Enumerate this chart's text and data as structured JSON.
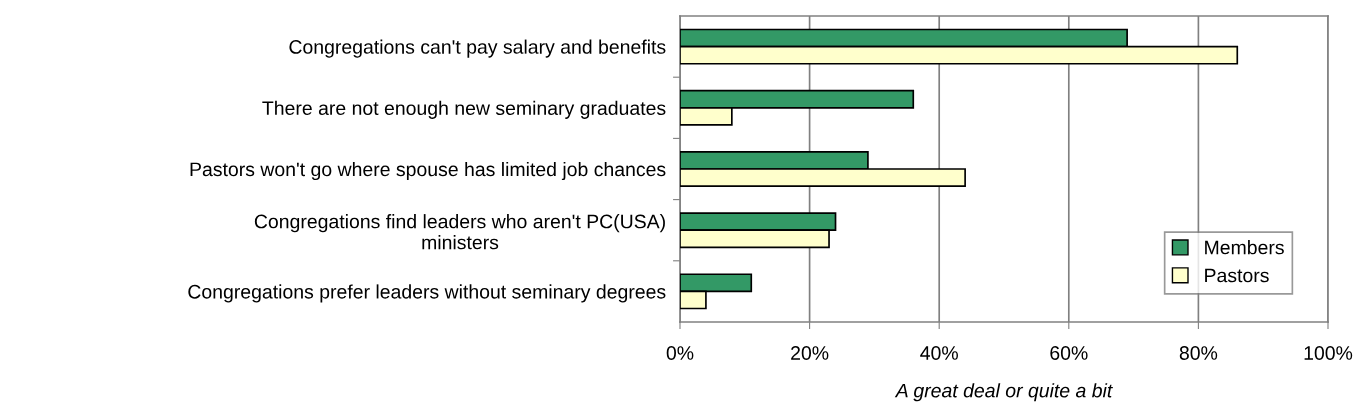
{
  "chart_data": {
    "type": "bar",
    "orientation": "horizontal",
    "categories": [
      "Congregations can't pay salary and benefits",
      "There are not enough new seminary graduates",
      "Pastors won't go where spouse has limited job chances",
      "Congregations find leaders who aren't PC(USA)\nministers",
      "Congregations prefer leaders without seminary degrees"
    ],
    "series": [
      {
        "name": "Members",
        "color": "#339966",
        "values": [
          69,
          36,
          29,
          24,
          11
        ]
      },
      {
        "name": "Pastors",
        "color": "#ffffcc",
        "values": [
          86,
          8,
          44,
          23,
          4
        ]
      }
    ],
    "xlabel": "A great deal or quite a bit",
    "xlim": [
      0,
      100
    ],
    "xticks": [
      {
        "value": 0,
        "label": "0%"
      },
      {
        "value": 20,
        "label": "20%"
      },
      {
        "value": 40,
        "label": "40%"
      },
      {
        "value": 60,
        "label": "60%"
      },
      {
        "value": 80,
        "label": "80%"
      },
      {
        "value": 100,
        "label": "100%"
      }
    ],
    "grid": "x",
    "legend": "bottom right"
  }
}
